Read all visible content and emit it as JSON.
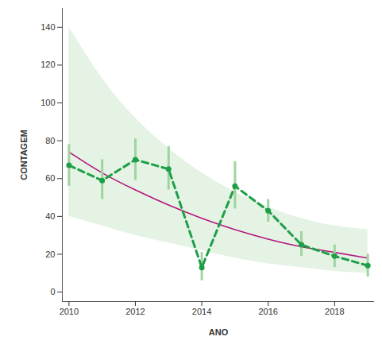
{
  "chart_data": {
    "type": "line",
    "x_label": "ANO",
    "y_label": "CONTAGEM",
    "x": [
      2010,
      2011,
      2012,
      2013,
      2014,
      2015,
      2016,
      2017,
      2018,
      2019
    ],
    "xlim": [
      2009.8,
      2019.2
    ],
    "xticks": [
      2010,
      2012,
      2014,
      2016,
      2018
    ],
    "ylim": [
      -5,
      150
    ],
    "yticks": [
      0,
      20,
      40,
      60,
      80,
      100,
      120,
      140
    ],
    "grid": false,
    "series": [
      {
        "type": "area",
        "color": "#e4f3e4",
        "low": [
          40,
          35,
          30,
          26,
          22,
          18,
          15,
          13,
          11,
          10
        ],
        "high": [
          140,
          113,
          92,
          76,
          63,
          53,
          45,
          39,
          35,
          33
        ]
      },
      {
        "type": "line",
        "color": "#b3177f",
        "line_style": "solid",
        "values": [
          74,
          63,
          54,
          46,
          39,
          33,
          28,
          24,
          21,
          18
        ]
      },
      {
        "type": "line",
        "color": "#1f9e48",
        "line_style": "dashed",
        "marker": "circle",
        "values": [
          67,
          59,
          70,
          65,
          13,
          56,
          43,
          25,
          19,
          14
        ],
        "error_low": [
          56,
          49,
          59,
          54,
          6,
          44,
          37,
          19,
          13,
          8
        ],
        "error_high": [
          78,
          70,
          81,
          77,
          21,
          69,
          49,
          32,
          25,
          20
        ]
      }
    ]
  }
}
